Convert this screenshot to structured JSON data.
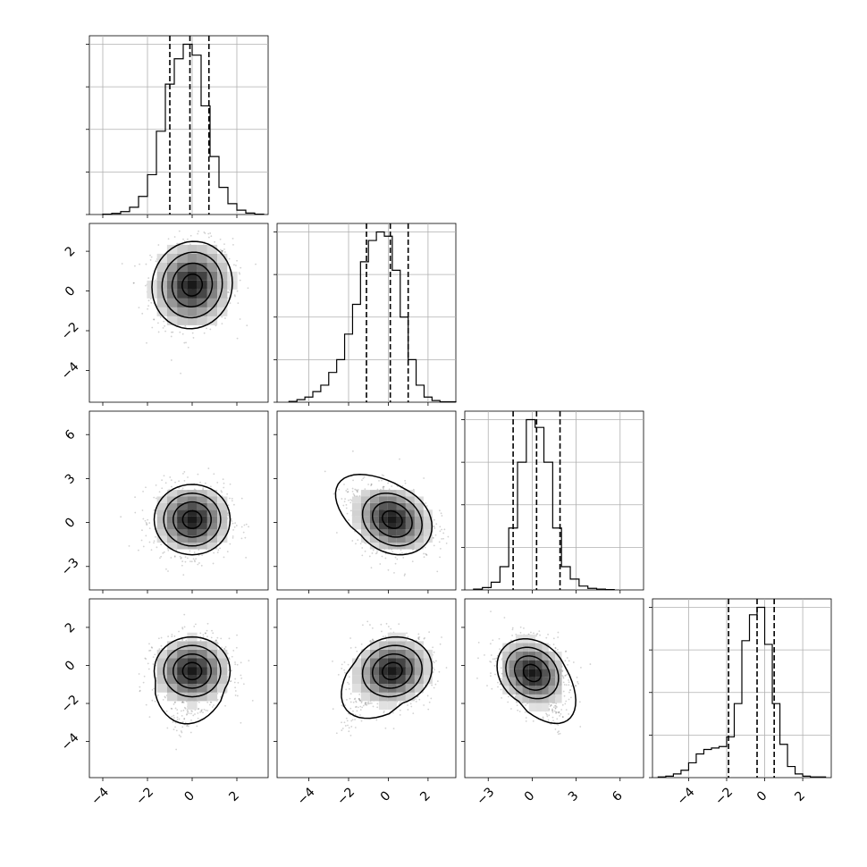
{
  "chart_data": {
    "type": "corner",
    "parameters": 4,
    "colors": {
      "line": "#000000",
      "grid": "#b0b0b0",
      "points": "#000000"
    },
    "grid": true,
    "quantiles": [
      0.16,
      0.5,
      0.84
    ],
    "axes": [
      {
        "range": [
          -4.6,
          3.4
        ],
        "ticks": [
          -4,
          -2,
          0,
          2
        ],
        "tick_labels": [
          "−4",
          "−2",
          "0",
          "2"
        ]
      },
      {
        "range": [
          -5.6,
          3.4
        ],
        "ticks": [
          -4,
          -2,
          0,
          2
        ],
        "tick_labels": [
          "−4",
          "−2",
          "0",
          "2"
        ]
      },
      {
        "range": [
          -4.6,
          7.6
        ],
        "ticks": [
          -3,
          0,
          3,
          6
        ],
        "tick_labels": [
          "−3",
          "0",
          "3",
          "6"
        ]
      },
      {
        "range": [
          -5.9,
          3.5
        ],
        "ticks": [
          -4,
          -2,
          0,
          2
        ],
        "tick_labels": [
          "−4",
          "−2",
          "0",
          "2"
        ]
      }
    ],
    "histograms": [
      {
        "param": 0,
        "bin_edges": [
          -4.0,
          -3.6,
          -3.2,
          -2.8,
          -2.4,
          -2.0,
          -1.6,
          -1.2,
          -0.8,
          -0.4,
          0.0,
          0.4,
          0.8,
          1.2,
          1.6,
          2.0,
          2.4,
          2.8,
          3.2
        ],
        "counts": [
          1,
          3,
          8,
          20,
          50,
          110,
          230,
          360,
          430,
          470,
          440,
          300,
          160,
          75,
          30,
          12,
          4,
          1
        ],
        "quantile_values": [
          -1.0,
          -0.1,
          0.75
        ]
      },
      {
        "param": 1,
        "bin_edges": [
          -5.0,
          -4.6,
          -4.2,
          -3.8,
          -3.4,
          -3.0,
          -2.6,
          -2.2,
          -1.8,
          -1.4,
          -1.0,
          -0.6,
          -0.2,
          0.2,
          0.6,
          1.0,
          1.4,
          1.8,
          2.2,
          2.6,
          3.0,
          3.4
        ],
        "counts": [
          2,
          6,
          12,
          25,
          40,
          70,
          100,
          160,
          230,
          330,
          380,
          400,
          390,
          310,
          200,
          100,
          40,
          12,
          4,
          1,
          1
        ],
        "quantile_values": [
          -1.1,
          0.1,
          1.0
        ]
      },
      {
        "param": 2,
        "bin_edges": [
          -4.0,
          -3.4,
          -2.8,
          -2.2,
          -1.6,
          -1.0,
          -0.4,
          0.2,
          0.8,
          1.4,
          2.0,
          2.6,
          3.2,
          3.8,
          4.4,
          5.0,
          5.6
        ],
        "counts": [
          2,
          6,
          20,
          60,
          160,
          330,
          440,
          420,
          330,
          160,
          60,
          28,
          10,
          4,
          2,
          1
        ],
        "quantile_values": [
          -1.3,
          0.3,
          1.9
        ]
      },
      {
        "param": 3,
        "bin_edges": [
          -5.6,
          -5.2,
          -4.8,
          -4.4,
          -4.0,
          -3.6,
          -3.2,
          -2.8,
          -2.4,
          -2.0,
          -1.6,
          -1.2,
          -0.8,
          -0.4,
          0.0,
          0.4,
          0.8,
          1.2,
          1.6,
          2.0,
          2.4,
          2.8,
          3.2
        ],
        "counts": [
          1,
          2,
          5,
          10,
          20,
          32,
          38,
          40,
          42,
          55,
          100,
          185,
          220,
          230,
          180,
          100,
          45,
          15,
          5,
          2,
          1,
          1
        ],
        "quantile_values": [
          -1.9,
          -0.4,
          0.5
        ]
      }
    ],
    "pairs": [
      {
        "x_param": 0,
        "y_param": 1,
        "center": [
          0.0,
          0.3
        ],
        "spread": [
          0.9,
          1.1
        ],
        "correlation": 0.05,
        "tail": null
      },
      {
        "x_param": 0,
        "y_param": 2,
        "center": [
          0.0,
          0.2
        ],
        "spread": [
          0.85,
          1.2
        ],
        "correlation": 0.0,
        "tail": null
      },
      {
        "x_param": 1,
        "y_param": 2,
        "center": [
          0.2,
          0.2
        ],
        "spread": [
          1.0,
          1.2
        ],
        "correlation": -0.2,
        "tail": [
          -2.0,
          2.0
        ]
      },
      {
        "x_param": 0,
        "y_param": 3,
        "center": [
          0.0,
          -0.3
        ],
        "spread": [
          0.85,
          0.9
        ],
        "correlation": 0.0,
        "tail": [
          -0.5,
          -3.5
        ]
      },
      {
        "x_param": 1,
        "y_param": 3,
        "center": [
          0.2,
          -0.3
        ],
        "spread": [
          1.0,
          0.9
        ],
        "correlation": 0.1,
        "tail": [
          -2.3,
          -3.2
        ]
      },
      {
        "x_param": 2,
        "y_param": 3,
        "center": [
          0.0,
          -0.4
        ],
        "spread": [
          1.2,
          0.9
        ],
        "correlation": -0.2,
        "tail": [
          2.0,
          -3.2
        ]
      }
    ],
    "contour_levels": [
      0.5,
      1.0,
      1.5,
      2.0
    ]
  }
}
